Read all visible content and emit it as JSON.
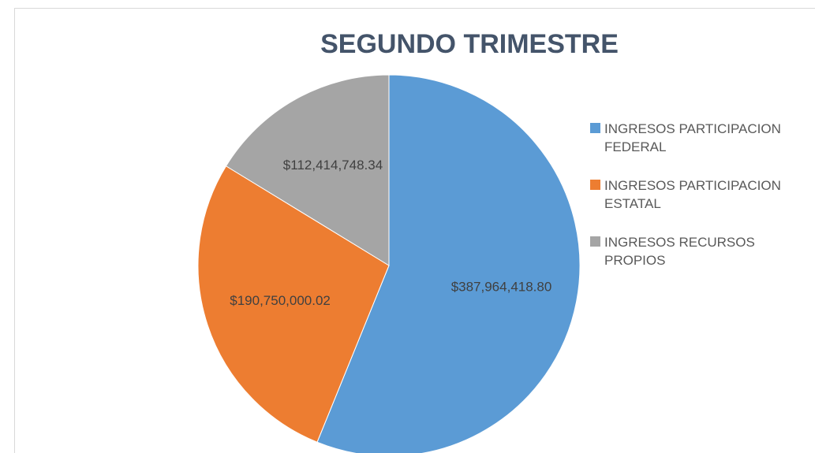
{
  "chart_data": {
    "type": "pie",
    "title": "SEGUNDO TRIMESTRE",
    "categories": [
      "INGRESOS PARTICIPACION FEDERAL",
      "INGRESOS PARTICIPACION ESTATAL",
      "INGRESOS RECURSOS PROPIOS"
    ],
    "values": [
      387964418.8,
      190750000.02,
      112414748.34
    ],
    "value_labels": [
      "$387,964,418.80",
      "$190,750,000.02",
      "$112,414,748.34"
    ],
    "colors": [
      "#5b9bd5",
      "#ed7d31",
      "#a5a5a5"
    ],
    "legend": "right"
  }
}
